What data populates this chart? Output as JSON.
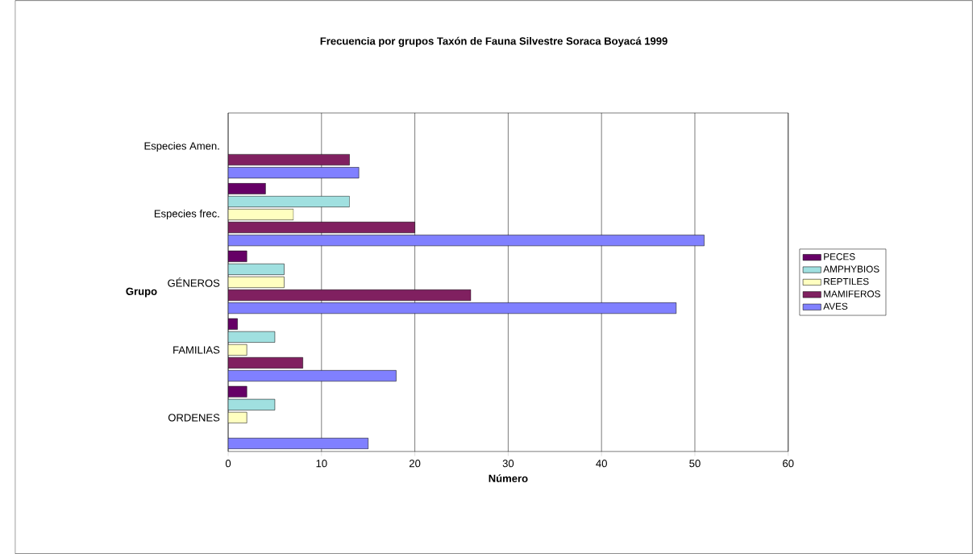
{
  "chart_data": {
    "type": "bar",
    "orientation": "horizontal",
    "title": "Frecuencia por grupos Taxón de Fauna Silvestre Soraca Boyacá 1999",
    "xlabel": "Número",
    "ylabel": "Grupo",
    "categories": [
      "Especies Amen.",
      "Especies frec.",
      "GÉNEROS",
      "FAMILIAS",
      "ORDENES"
    ],
    "series": [
      {
        "name": "PECES",
        "color": "#660066",
        "values": [
          null,
          4,
          2,
          1,
          2
        ]
      },
      {
        "name": "AMPHYBIOS",
        "color": "#a0e0e0",
        "values": [
          null,
          13,
          6,
          5,
          5
        ]
      },
      {
        "name": "REPTILES",
        "color": "#ffffc0",
        "values": [
          null,
          7,
          6,
          2,
          2
        ]
      },
      {
        "name": "MAMIFEROS",
        "color": "#802060",
        "values": [
          13,
          20,
          26,
          8,
          null
        ]
      },
      {
        "name": "AVES",
        "color": "#8080ff",
        "values": [
          14,
          51,
          48,
          18,
          15
        ]
      }
    ],
    "xlim": [
      0,
      60
    ],
    "xticks": [
      0,
      10,
      20,
      30,
      40,
      50,
      60
    ],
    "grid": "x",
    "legend": "right"
  }
}
